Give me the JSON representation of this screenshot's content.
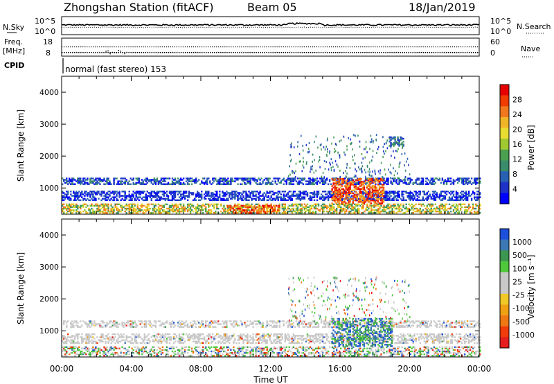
{
  "header": {
    "station": "Zhongshan Station (fitACF)",
    "beam": "Beam 05",
    "date": "18/Jan/2019"
  },
  "summary": {
    "nsky_label": "N.Sky",
    "nsearch_label": "N.Search",
    "ticks_left": [
      "10^5",
      "10^0"
    ],
    "ticks_right": [
      "10^5",
      "10^0"
    ],
    "freq_label": "Freq.",
    "freq_unit": "[MHz]",
    "freq_ticks": [
      "18",
      "8"
    ],
    "nave_label": "Nave",
    "nave_ticks": [
      "60",
      "0"
    ],
    "cpid_label": "CPID",
    "cpid_value": "normal (fast stereo) 153"
  },
  "chart_data": [
    {
      "type": "heatmap",
      "name": "power",
      "ylabel": "Slant Range [km]",
      "ylim": [
        180,
        4500
      ],
      "y_ticks": [
        "4000",
        "3000",
        "2000",
        "1000"
      ],
      "x_ticks": [
        "00:00",
        "04:00",
        "08:00",
        "12:00",
        "16:00",
        "20:00",
        "00:00"
      ],
      "xlabel": "Time UT",
      "colorbar": {
        "label": "Power [dB]",
        "ticks": [
          "28",
          "24",
          "20",
          "16",
          "12",
          "8",
          "4"
        ],
        "colors": [
          "#e60000",
          "#f03c00",
          "#f0781e",
          "#f0b428",
          "#e6dc32",
          "#a0c832",
          "#4ba050",
          "#3a8c6a",
          "#2860b4",
          "#1e32c8",
          "#0000ff"
        ]
      },
      "bands": [
        {
          "t": [
            0,
            24
          ],
          "r": [
            1100,
            1300
          ],
          "level": "weak-moderate"
        },
        {
          "t": [
            0,
            24
          ],
          "r": [
            600,
            900
          ],
          "level": "weak"
        },
        {
          "t": [
            0,
            24
          ],
          "r": [
            200,
            500
          ],
          "level": "moderate-strong"
        },
        {
          "t": [
            9.5,
            12.5
          ],
          "r": [
            200,
            450
          ],
          "level": "strong"
        },
        {
          "t": [
            15.5,
            18.5
          ],
          "r": [
            500,
            1300
          ],
          "level": "strong"
        },
        {
          "t": [
            18.8,
            19.6
          ],
          "r": [
            2300,
            2600
          ],
          "level": "moderate"
        }
      ]
    },
    {
      "type": "heatmap",
      "name": "velocity",
      "ylabel": "Slant Range [km]",
      "ylim": [
        180,
        4500
      ],
      "y_ticks": [
        "4000",
        "3000",
        "2000",
        "1000"
      ],
      "x_ticks": [
        "00:00",
        "04:00",
        "08:00",
        "12:00",
        "16:00",
        "20:00",
        "00:00"
      ],
      "xlabel": "Time UT",
      "colorbar": {
        "label": "Velocity [m s⁻¹]",
        "ticks": [
          "1000",
          "500",
          "100",
          "25",
          "-25",
          "-100",
          "-500",
          "-1000"
        ],
        "colors": [
          "#1e50dc",
          "#3c78b4",
          "#3c9650",
          "#50c83c",
          "#c8c8c8",
          "#c8c8c8",
          "#f0c828",
          "#f0a014",
          "#f07814",
          "#f03c0a",
          "#e61e1e"
        ]
      },
      "bands": [
        {
          "t": [
            0,
            24
          ],
          "r": [
            1100,
            1300
          ],
          "level": "ground-scatter"
        },
        {
          "t": [
            0,
            24
          ],
          "r": [
            600,
            900
          ],
          "level": "ground-scatter"
        },
        {
          "t": [
            0,
            24
          ],
          "r": [
            200,
            500
          ],
          "level": "mixed"
        },
        {
          "t": [
            15.5,
            19
          ],
          "r": [
            500,
            1400
          ],
          "level": "toward"
        }
      ]
    }
  ]
}
